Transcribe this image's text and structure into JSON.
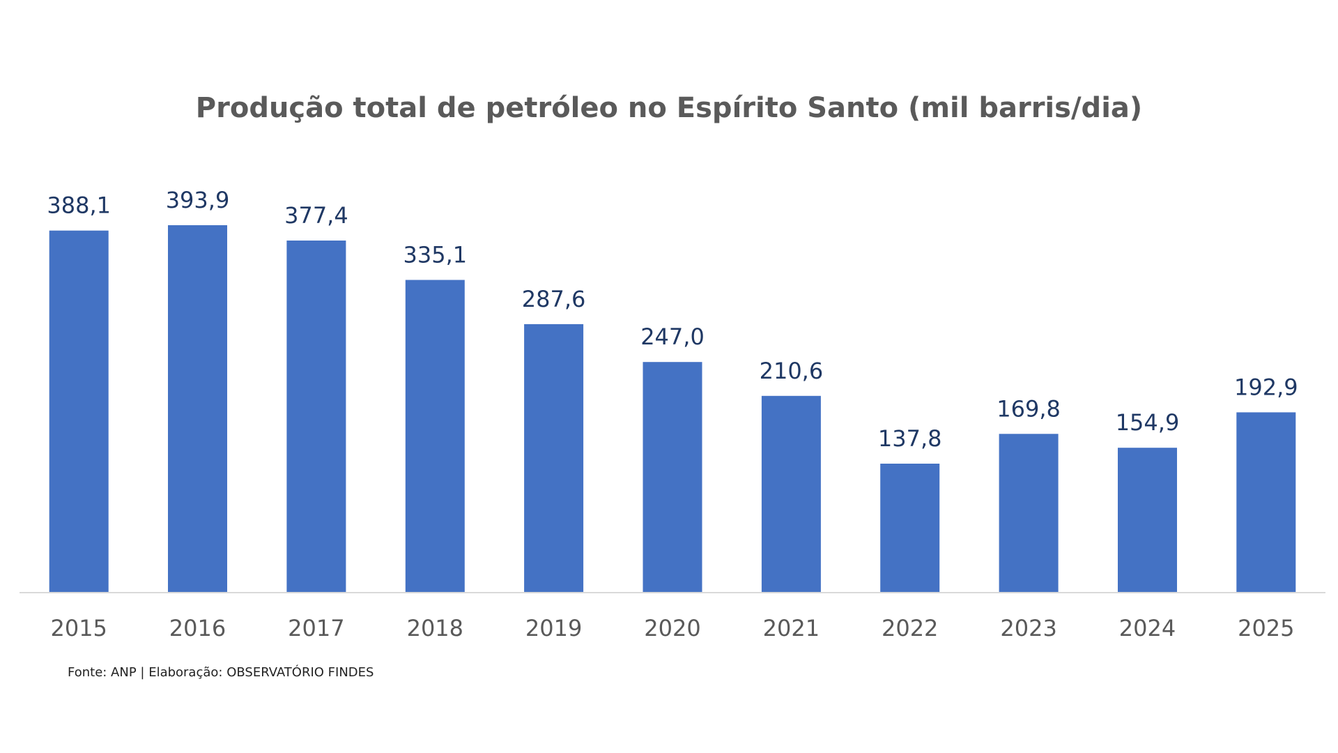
{
  "chart_data": {
    "type": "bar",
    "title": "Produção total de petróleo no Espírito Santo (mil barris/dia)",
    "xlabel": "",
    "ylabel": "",
    "categories": [
      "2015",
      "2016",
      "2017",
      "2018",
      "2019",
      "2020",
      "2021",
      "2022",
      "2023",
      "2024",
      "2025"
    ],
    "values": [
      388.1,
      393.9,
      377.4,
      335.1,
      287.6,
      247.0,
      210.6,
      137.8,
      169.8,
      154.9,
      192.9
    ],
    "value_labels": [
      "388,1",
      "393,9",
      "377,4",
      "335,1",
      "287,6",
      "247,0",
      "210,6",
      "137,8",
      "169,8",
      "154,9",
      "192,9"
    ],
    "ylim": [
      0,
      393.9
    ],
    "grid": false,
    "legend": "none",
    "bar_color": "#4472c4",
    "label_color": "#1f3864",
    "tick_color": "#595959"
  },
  "source_note": "Fonte: ANP | Elaboração: OBSERVATÓRIO FINDES"
}
